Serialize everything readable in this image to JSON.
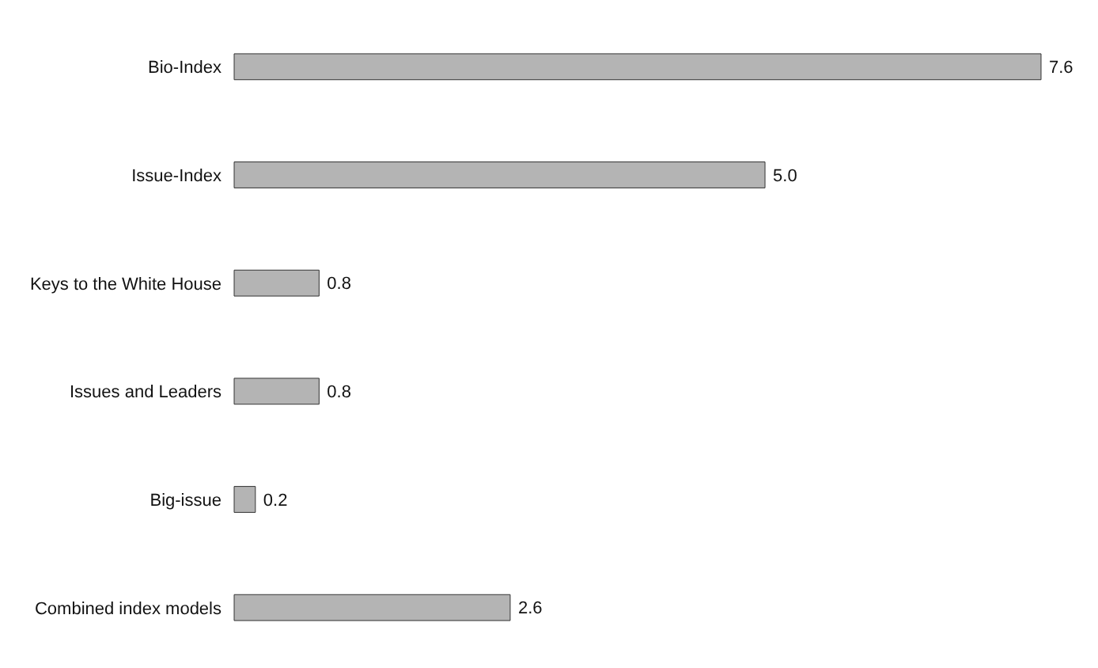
{
  "chart_data": {
    "type": "bar",
    "orientation": "horizontal",
    "categories": [
      "Bio-Index",
      "Issue-Index",
      "Keys to the White House",
      "Issues and Leaders",
      "Big-issue",
      "Combined index models"
    ],
    "values": [
      7.6,
      5.0,
      0.8,
      0.8,
      0.2,
      2.6
    ],
    "value_labels": [
      "7.6",
      "5.0",
      "0.8",
      "0.8",
      "0.2",
      "2.6"
    ],
    "color": "#b4b4b4"
  }
}
